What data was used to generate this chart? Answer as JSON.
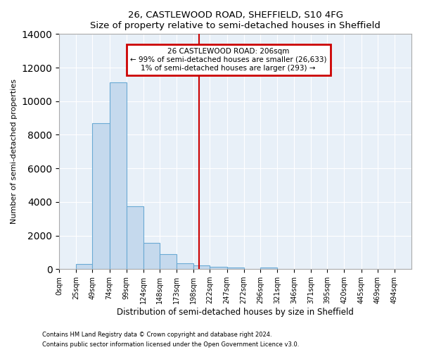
{
  "title1": "26, CASTLEWOOD ROAD, SHEFFIELD, S10 4FG",
  "title2": "Size of property relative to semi-detached houses in Sheffield",
  "xlabel": "Distribution of semi-detached houses by size in Sheffield",
  "ylabel": "Number of semi-detached properties",
  "footer1": "Contains HM Land Registry data © Crown copyright and database right 2024.",
  "footer2": "Contains public sector information licensed under the Open Government Licence v3.0.",
  "annotation_title": "26 CASTLEWOOD ROAD: 206sqm",
  "annotation_line1": "← 99% of semi-detached houses are smaller (26,633)",
  "annotation_line2": "1% of semi-detached houses are larger (293) →",
  "property_size": 206,
  "bar_left_edges": [
    0,
    25,
    49,
    74,
    99,
    124,
    148,
    173,
    198,
    222,
    247,
    272,
    296,
    321,
    346,
    371,
    395,
    420,
    445,
    469
  ],
  "bar_widths": [
    25,
    24,
    25,
    25,
    25,
    24,
    25,
    25,
    24,
    25,
    25,
    24,
    25,
    25,
    25,
    24,
    25,
    25,
    24,
    25
  ],
  "bar_heights": [
    0,
    300,
    8700,
    11100,
    3750,
    1550,
    900,
    350,
    200,
    150,
    100,
    0,
    100,
    0,
    0,
    0,
    0,
    0,
    0,
    0
  ],
  "bar_color": "#c5d9ed",
  "bar_edge_color": "#6aaad4",
  "vline_color": "#cc0000",
  "annotation_box_color": "#cc0000",
  "background_color": "#e8f0f8",
  "grid_color": "#ffffff",
  "ylim": [
    0,
    14000
  ],
  "yticks": [
    0,
    2000,
    4000,
    6000,
    8000,
    10000,
    12000,
    14000
  ],
  "tick_labels": [
    "0sqm",
    "25sqm",
    "49sqm",
    "74sqm",
    "99sqm",
    "124sqm",
    "148sqm",
    "173sqm",
    "198sqm",
    "222sqm",
    "247sqm",
    "272sqm",
    "296sqm",
    "321sqm",
    "346sqm",
    "371sqm",
    "395sqm",
    "420sqm",
    "445sqm",
    "469sqm",
    "494sqm"
  ],
  "xlim_max": 519
}
